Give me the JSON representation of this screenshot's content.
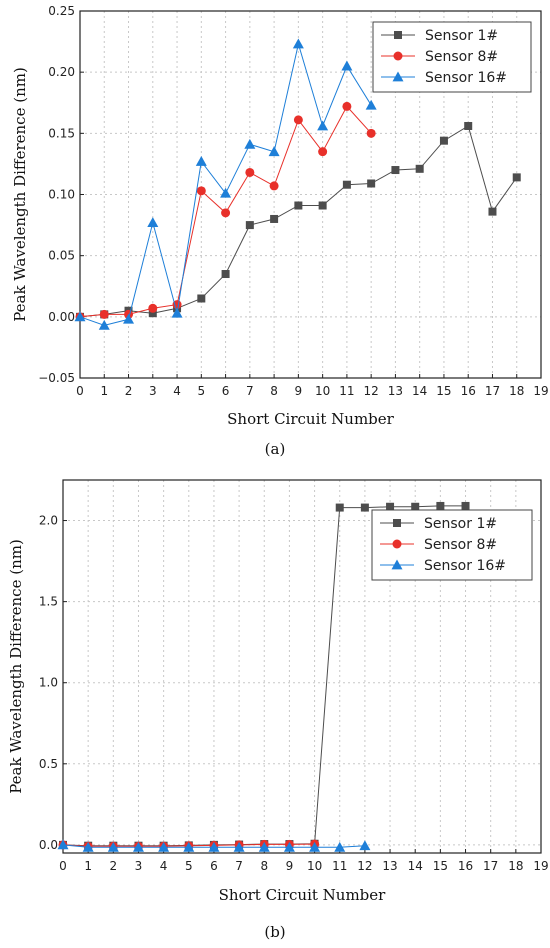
{
  "chart_data": [
    {
      "type": "line",
      "xlabel": "Short Circuit Number",
      "ylabel": "Peak Wavelength Difference (nm)",
      "caption": "(a)",
      "xlim": [
        0,
        19
      ],
      "ylim": [
        -0.05,
        0.25
      ],
      "xticks": [
        "0",
        "1",
        "2",
        "3",
        "4",
        "5",
        "6",
        "7",
        "8",
        "9",
        "10",
        "11",
        "12",
        "13",
        "14",
        "15",
        "16",
        "17",
        "18",
        "19"
      ],
      "yticks": [
        "−0.05",
        "0.00",
        "0.05",
        "0.10",
        "0.15",
        "0.20",
        "0.25"
      ],
      "ytick_values": [
        -0.05,
        0,
        0.05,
        0.1,
        0.15,
        0.2,
        0.25
      ],
      "grid": true,
      "legend_position": "top-right",
      "series": [
        {
          "name": "Sensor  1#",
          "color": "#4d4d4d",
          "marker": "square",
          "x": [
            0,
            1,
            2,
            3,
            4,
            5,
            6,
            7,
            8,
            9,
            10,
            11,
            12,
            13,
            14,
            15,
            16,
            17,
            18
          ],
          "y": [
            0,
            0.002,
            0.005,
            0.003,
            0.007,
            0.015,
            0.035,
            0.075,
            0.08,
            0.091,
            0.091,
            0.108,
            0.109,
            0.12,
            0.121,
            0.144,
            0.156,
            0.086,
            0.114
          ]
        },
        {
          "name": "Sensor  8#",
          "color": "#e8302a",
          "marker": "circle",
          "x": [
            0,
            1,
            2,
            3,
            4,
            5,
            6,
            7,
            8,
            9,
            10,
            11,
            12
          ],
          "y": [
            0,
            0.002,
            0.002,
            0.007,
            0.01,
            0.103,
            0.085,
            0.118,
            0.107,
            0.161,
            0.135,
            0.172,
            0.15
          ]
        },
        {
          "name": "Sensor  16#",
          "color": "#1e7fd8",
          "marker": "triangle",
          "x": [
            0,
            1,
            2,
            3,
            4,
            5,
            6,
            7,
            8,
            9,
            10,
            11,
            12
          ],
          "y": [
            0,
            -0.007,
            -0.002,
            0.077,
            0.003,
            0.127,
            0.101,
            0.141,
            0.135,
            0.223,
            0.156,
            0.205,
            0.173
          ]
        }
      ]
    },
    {
      "type": "line",
      "xlabel": "Short Circuit Number",
      "ylabel": "Peak Wavelength Difference (nm)",
      "caption": "(b)",
      "xlim": [
        0,
        19
      ],
      "ylim": [
        -0.05,
        2.25
      ],
      "xticks": [
        "0",
        "1",
        "2",
        "3",
        "4",
        "5",
        "6",
        "7",
        "8",
        "9",
        "10",
        "11",
        "12",
        "13",
        "14",
        "15",
        "16",
        "17",
        "18",
        "19"
      ],
      "yticks": [
        "0.0",
        "0.5",
        "1.0",
        "1.5",
        "2.0"
      ],
      "ytick_values": [
        0,
        0.5,
        1.0,
        1.5,
        2.0
      ],
      "grid": true,
      "legend_position": "upper-right",
      "series": [
        {
          "name": "Sensor  1#",
          "color": "#4d4d4d",
          "marker": "square",
          "x": [
            0,
            1,
            2,
            3,
            4,
            5,
            6,
            7,
            8,
            9,
            10,
            11,
            12,
            13,
            14,
            15,
            16
          ],
          "y": [
            0,
            -0.005,
            -0.005,
            -0.005,
            -0.005,
            -0.003,
            0,
            0.002,
            0.005,
            0.005,
            0.007,
            2.08,
            2.08,
            2.085,
            2.085,
            2.09,
            2.09
          ]
        },
        {
          "name": "Sensor  8#",
          "color": "#e8302a",
          "marker": "circle",
          "x": [
            0,
            1,
            2,
            3,
            4,
            5,
            6,
            7,
            8,
            9,
            10
          ],
          "y": [
            0,
            -0.008,
            -0.008,
            -0.008,
            -0.008,
            -0.005,
            -0.003,
            0,
            0.003,
            0.003,
            0.005
          ]
        },
        {
          "name": "Sensor  16#",
          "color": "#1e7fd8",
          "marker": "triangle",
          "x": [
            0,
            1,
            2,
            3,
            4,
            5,
            6,
            7,
            8,
            9,
            10,
            11,
            12
          ],
          "y": [
            0,
            -0.015,
            -0.015,
            -0.015,
            -0.015,
            -0.015,
            -0.015,
            -0.015,
            -0.015,
            -0.015,
            -0.015,
            -0.015,
            -0.005
          ]
        }
      ]
    }
  ]
}
